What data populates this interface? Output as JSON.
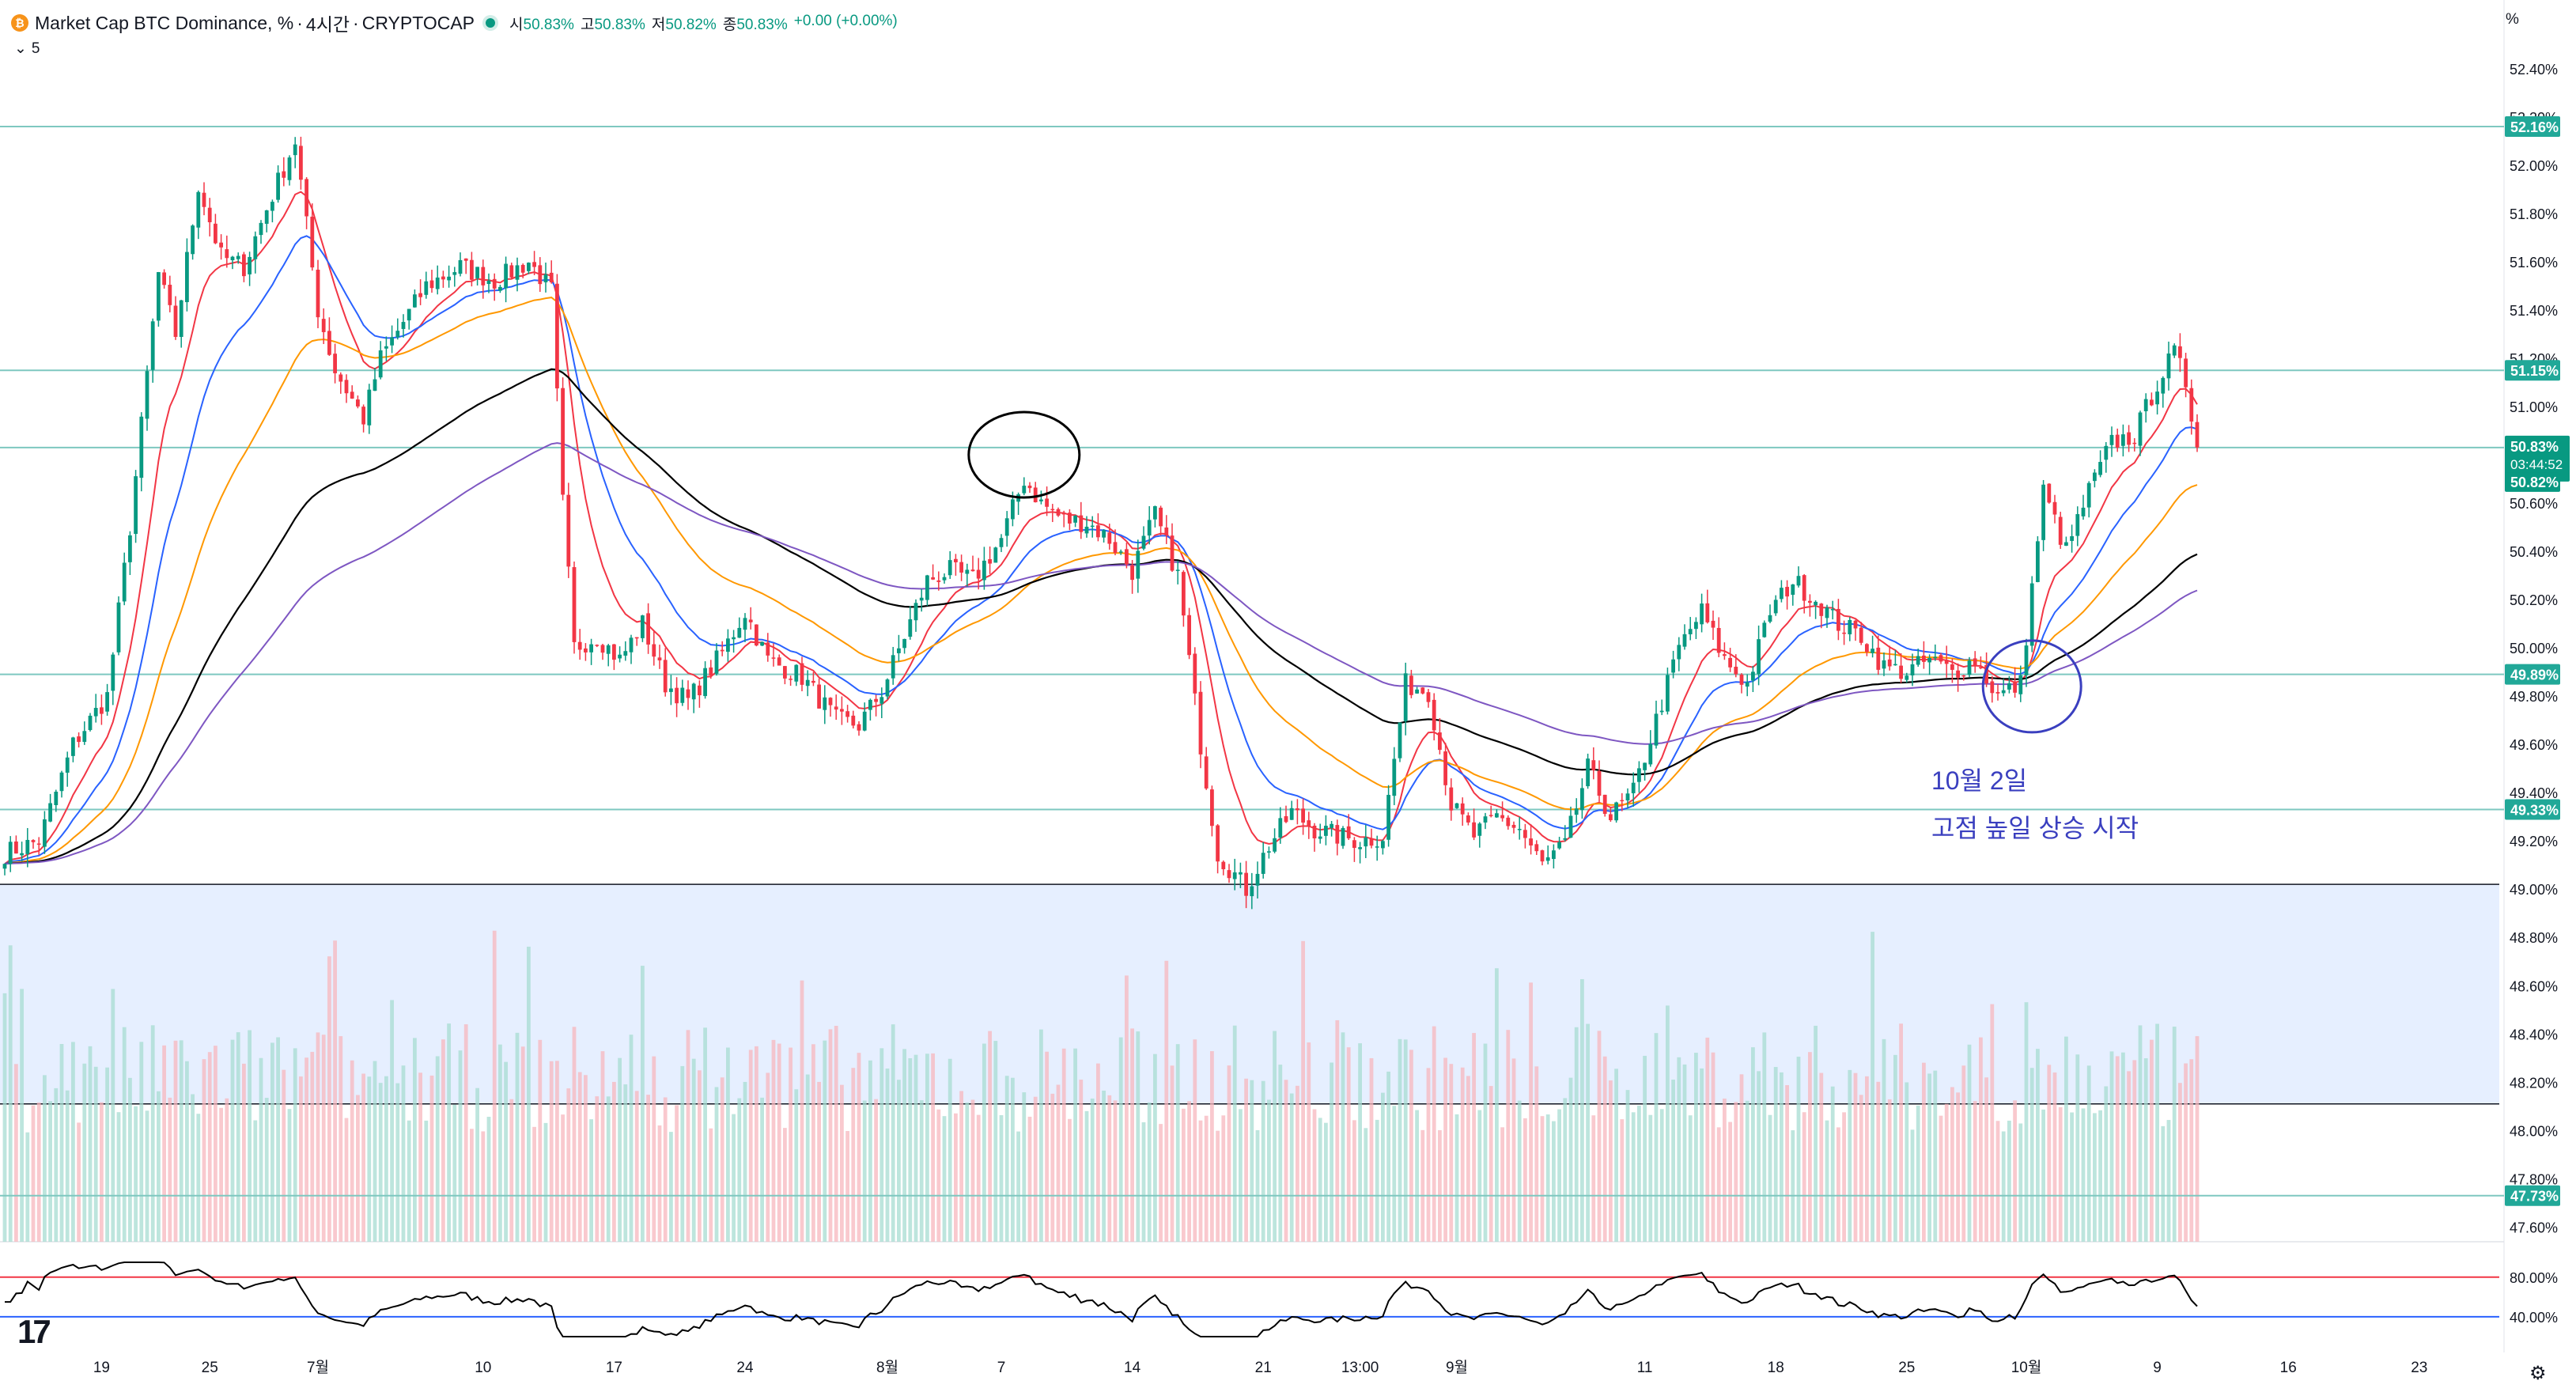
{
  "header": {
    "symbol_title": "Market Cap BTC Dominance, %",
    "interval": "4시간",
    "exchange": "CRYPTOCAP",
    "separator": "·",
    "ohlc": [
      {
        "key": "시",
        "value": "50.83%"
      },
      {
        "key": "고",
        "value": "50.83%"
      },
      {
        "key": "저",
        "value": "50.82%"
      },
      {
        "key": "종",
        "value": "50.83%"
      },
      {
        "key": "",
        "value": "+0.00 (+0.00%)"
      }
    ],
    "indicator_row": "5",
    "unit_label": "%"
  },
  "annotations": {
    "line1": "10월 2일",
    "line2": "고점 높일 상승 시작"
  },
  "logo_text": "17",
  "colors": {
    "up": "#089981",
    "down": "#f23645",
    "level_line": "#7ec8c0",
    "ema_red": "#f23645",
    "ema_blue": "#2962ff",
    "ema_orange": "#ff9800",
    "ema_black": "#000000",
    "ema_purple": "#7e57c2",
    "zone_fill": "#e6efff",
    "circle_black": "#000000",
    "circle_blue": "#3a3fbf"
  },
  "chart_data": {
    "type": "candlestick",
    "title": "Market Cap BTC Dominance, % · 4시간 · CRYPTOCAP",
    "y_unit": "%",
    "ylim": [
      47.48,
      52.56
    ],
    "y_ticks": [
      "52.40%",
      "52.20%",
      "52.00%",
      "51.80%",
      "51.60%",
      "51.40%",
      "51.20%",
      "51.00%",
      "50.80%",
      "50.60%",
      "50.40%",
      "50.20%",
      "50.00%",
      "49.80%",
      "49.60%",
      "49.40%",
      "49.20%",
      "49.00%",
      "48.80%",
      "48.60%",
      "48.40%",
      "48.20%",
      "48.00%",
      "47.80%",
      "47.60%"
    ],
    "x_ticks": [
      {
        "i": 17,
        "label": "19"
      },
      {
        "i": 36,
        "label": "25"
      },
      {
        "i": 55,
        "label": "7월"
      },
      {
        "i": 84,
        "label": "10"
      },
      {
        "i": 107,
        "label": "17"
      },
      {
        "i": 130,
        "label": "24"
      },
      {
        "i": 155,
        "label": "8월"
      },
      {
        "i": 175,
        "label": "7"
      },
      {
        "i": 198,
        "label": "14"
      },
      {
        "i": 221,
        "label": "21"
      },
      {
        "i": 238,
        "label": "13:00"
      },
      {
        "i": 255,
        "label": "9월"
      },
      {
        "i": 288,
        "label": "11"
      },
      {
        "i": 311,
        "label": "18"
      },
      {
        "i": 334,
        "label": "25"
      },
      {
        "i": 355,
        "label": "10월"
      },
      {
        "i": 378,
        "label": "9"
      },
      {
        "i": 401,
        "label": "16"
      },
      {
        "i": 424,
        "label": "23"
      }
    ],
    "horizontal_levels": [
      {
        "value": 52.16,
        "label": "52.16%",
        "color": "#7ec8c0"
      },
      {
        "value": 51.15,
        "label": "51.15%",
        "color": "#7ec8c0"
      },
      {
        "value": 50.83,
        "label": "50.83%",
        "color": "#7ec8c0"
      },
      {
        "value": 49.89,
        "label": "49.89%",
        "color": "#7ec8c0"
      },
      {
        "value": 49.33,
        "label": "49.33%",
        "color": "#7ec8c0"
      },
      {
        "value": 47.73,
        "label": "47.73%",
        "color": "#7ec8c0"
      }
    ],
    "zone": {
      "from": 48.11,
      "to": 49.02
    },
    "price_tag": {
      "value": 50.83,
      "label": "50.83%",
      "countdown": "03:44:52"
    },
    "low_tag": {
      "value": 50.82,
      "label": "50.82%"
    },
    "candle_count": 386,
    "anchors": [
      [
        0,
        49.15
      ],
      [
        6,
        49.2
      ],
      [
        12,
        49.6
      ],
      [
        18,
        49.8
      ],
      [
        22,
        50.5
      ],
      [
        27,
        51.55
      ],
      [
        30,
        51.3
      ],
      [
        34,
        51.92
      ],
      [
        38,
        51.62
      ],
      [
        42,
        51.58
      ],
      [
        46,
        51.82
      ],
      [
        51,
        52.1
      ],
      [
        55,
        51.4
      ],
      [
        58,
        51.15
      ],
      [
        63,
        50.95
      ],
      [
        66,
        51.2
      ],
      [
        70,
        51.35
      ],
      [
        74,
        51.5
      ],
      [
        80,
        51.58
      ],
      [
        86,
        51.52
      ],
      [
        92,
        51.6
      ],
      [
        96,
        51.48
      ],
      [
        98,
        50.6
      ],
      [
        100,
        50.0
      ],
      [
        104,
        50.05
      ],
      [
        108,
        49.95
      ],
      [
        112,
        50.1
      ],
      [
        116,
        49.85
      ],
      [
        120,
        49.78
      ],
      [
        126,
        49.98
      ],
      [
        130,
        50.15
      ],
      [
        134,
        49.95
      ],
      [
        140,
        49.88
      ],
      [
        146,
        49.7
      ],
      [
        150,
        49.68
      ],
      [
        154,
        49.82
      ],
      [
        158,
        50.05
      ],
      [
        162,
        50.28
      ],
      [
        166,
        50.32
      ],
      [
        170,
        50.28
      ],
      [
        175,
        50.45
      ],
      [
        179,
        50.7
      ],
      [
        182,
        50.6
      ],
      [
        186,
        50.53
      ],
      [
        190,
        50.52
      ],
      [
        194,
        50.45
      ],
      [
        198,
        50.32
      ],
      [
        202,
        50.55
      ],
      [
        206,
        50.3
      ],
      [
        210,
        49.6
      ],
      [
        213,
        49.15
      ],
      [
        218,
        49.0
      ],
      [
        222,
        49.18
      ],
      [
        226,
        49.32
      ],
      [
        230,
        49.25
      ],
      [
        234,
        49.22
      ],
      [
        238,
        49.2
      ],
      [
        242,
        49.22
      ],
      [
        246,
        49.85
      ],
      [
        250,
        49.82
      ],
      [
        254,
        49.35
      ],
      [
        258,
        49.22
      ],
      [
        262,
        49.3
      ],
      [
        266,
        49.25
      ],
      [
        270,
        49.1
      ],
      [
        274,
        49.18
      ],
      [
        278,
        49.5
      ],
      [
        282,
        49.3
      ],
      [
        286,
        49.4
      ],
      [
        290,
        49.7
      ],
      [
        294,
        50.0
      ],
      [
        298,
        50.15
      ],
      [
        302,
        49.95
      ],
      [
        306,
        49.85
      ],
      [
        310,
        50.15
      ],
      [
        314,
        50.28
      ],
      [
        318,
        50.2
      ],
      [
        322,
        50.1
      ],
      [
        326,
        50.05
      ],
      [
        330,
        49.92
      ],
      [
        334,
        49.9
      ],
      [
        338,
        49.95
      ],
      [
        342,
        49.9
      ],
      [
        346,
        49.95
      ],
      [
        350,
        49.8
      ],
      [
        354,
        49.85
      ],
      [
        358,
        50.65
      ],
      [
        362,
        50.4
      ],
      [
        366,
        50.65
      ],
      [
        370,
        50.85
      ],
      [
        374,
        50.88
      ],
      [
        378,
        51.1
      ],
      [
        381,
        51.22
      ],
      [
        383,
        51.1
      ],
      [
        385,
        50.83
      ]
    ],
    "rsi": {
      "upper": 80,
      "lower": 40,
      "y_ticks": [
        "80.00%",
        "40.00%"
      ]
    }
  }
}
